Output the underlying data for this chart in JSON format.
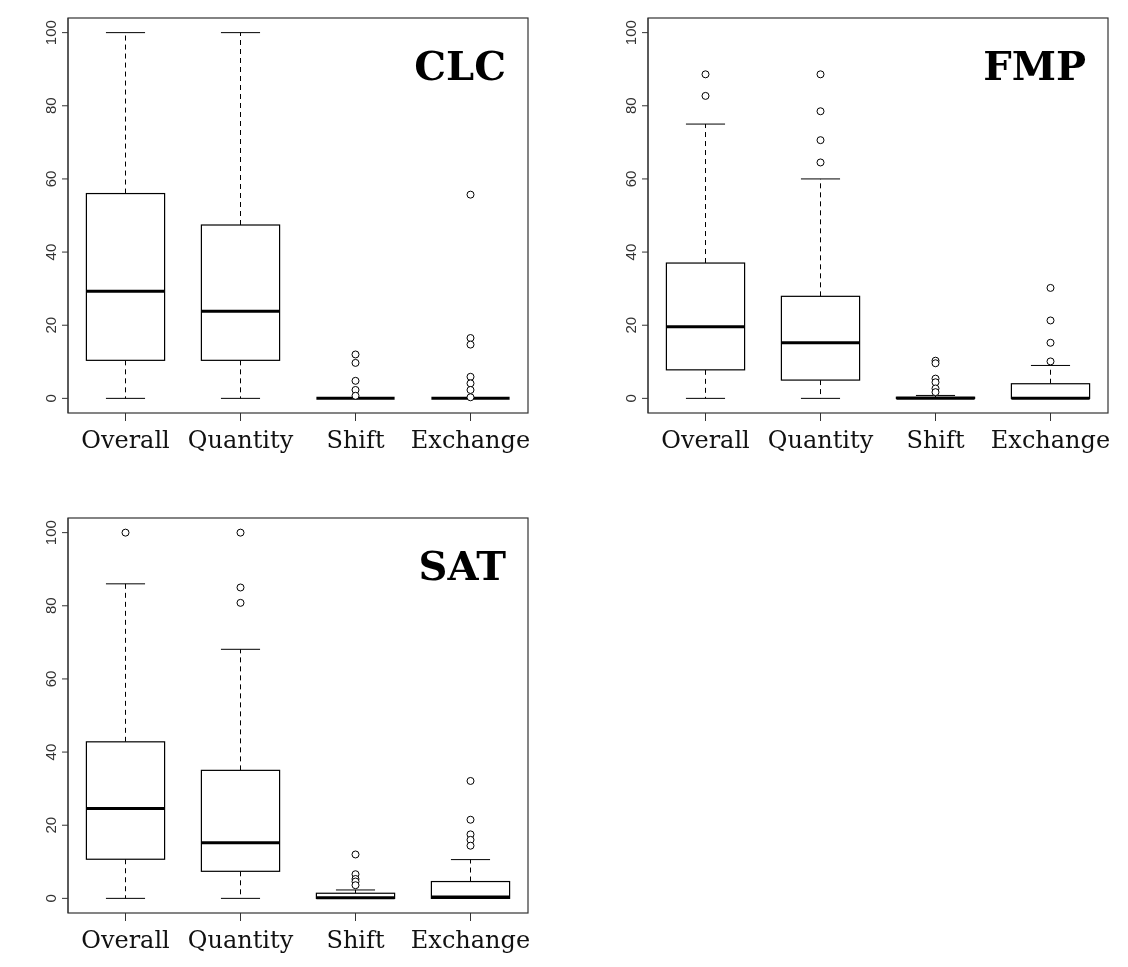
{
  "chart_data": [
    {
      "type": "box",
      "title": "CLC",
      "categories": [
        "Overall",
        "Quantity",
        "Shift",
        "Exchange"
      ],
      "ylim": [
        -4,
        104
      ],
      "yticks": [
        0,
        20,
        40,
        60,
        80,
        100
      ],
      "boxes": [
        {
          "low": 0,
          "q1": 10.4,
          "median": 29.3,
          "q3": 56,
          "high": 100
        },
        {
          "low": 0,
          "q1": 10.4,
          "median": 23.8,
          "q3": 47.4,
          "high": 100
        },
        {
          "low": 0,
          "q1": 0,
          "median": 0,
          "q3": 0,
          "high": 0,
          "outliers": [
            12,
            9.7,
            4.8,
            2.3,
            0.7
          ]
        },
        {
          "low": 0,
          "q1": 0,
          "median": 0,
          "q3": 0,
          "high": 0,
          "outliers": [
            55.7,
            16.5,
            14.7,
            5.9,
            4.1,
            2.3,
            0.3
          ]
        }
      ]
    },
    {
      "type": "box",
      "title": "FMP",
      "categories": [
        "Overall",
        "Quantity",
        "Shift",
        "Exchange"
      ],
      "ylim": [
        -4,
        104
      ],
      "yticks": [
        0,
        20,
        40,
        60,
        80,
        100
      ],
      "boxes": [
        {
          "low": 0,
          "q1": 7.8,
          "median": 19.6,
          "q3": 37,
          "high": 75,
          "outliers": [
            88.6,
            82.7
          ]
        },
        {
          "low": 0,
          "q1": 5,
          "median": 15.2,
          "q3": 27.9,
          "high": 60,
          "outliers": [
            88.6,
            78.5,
            70.6,
            64.5
          ]
        },
        {
          "low": 0,
          "q1": 0,
          "median": 0,
          "q3": 0.3,
          "high": 0.8,
          "outliers": [
            10.3,
            9.6,
            5.4,
            4.4,
            2.7,
            1.7
          ]
        },
        {
          "low": 0,
          "q1": 0,
          "median": 0,
          "q3": 4,
          "high": 9,
          "outliers": [
            30.2,
            21.3,
            15.2,
            10.1
          ]
        }
      ]
    },
    {
      "type": "box",
      "title": "SAT",
      "categories": [
        "Overall",
        "Quantity",
        "Shift",
        "Exchange"
      ],
      "ylim": [
        -4,
        104
      ],
      "yticks": [
        0,
        20,
        40,
        60,
        80,
        100
      ],
      "boxes": [
        {
          "low": 0,
          "q1": 10.7,
          "median": 24.6,
          "q3": 42.8,
          "high": 86,
          "outliers": [
            100
          ]
        },
        {
          "low": 0,
          "q1": 7.4,
          "median": 15.2,
          "q3": 35,
          "high": 68.1,
          "outliers": [
            100,
            85,
            80.8
          ]
        },
        {
          "low": 0,
          "q1": 0,
          "median": 0.2,
          "q3": 1.4,
          "high": 2.3,
          "outliers": [
            12,
            6.6,
            5.3,
            4.6,
            3.6
          ]
        },
        {
          "low": 0,
          "q1": 0,
          "median": 0.4,
          "q3": 4.6,
          "high": 10.6,
          "outliers": [
            32.1,
            21.5,
            17.5,
            16,
            14.4
          ]
        }
      ]
    }
  ]
}
